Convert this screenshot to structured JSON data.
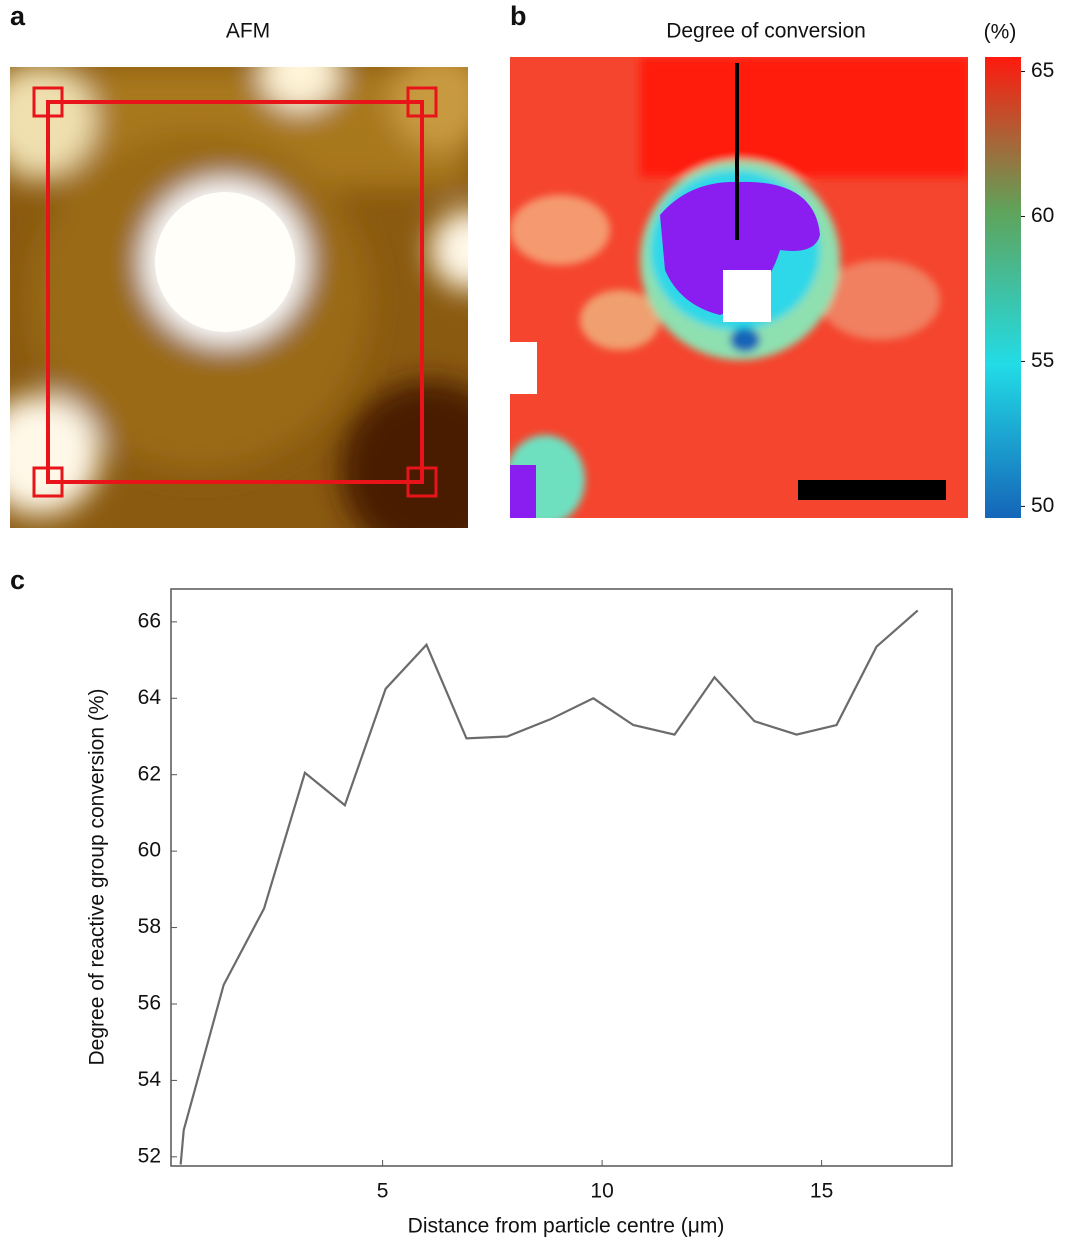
{
  "chart_data": [
    {
      "type": "image",
      "label": "a",
      "title": "AFM"
    },
    {
      "type": "heatmap",
      "label": "b",
      "title": "Degree of conversion",
      "colorbar_label": "(%)",
      "ylim": [
        49.6,
        65.5
      ],
      "yticks": [
        50,
        55,
        60,
        65
      ],
      "colormap": [
        "#1565b8",
        "#22dce6",
        "#5fa35a",
        "#ff1a0e"
      ]
    },
    {
      "type": "line",
      "label": "c",
      "x_label": "Distance from particle centre (μm)",
      "y_label": "Degree of reactive group conversion (%)",
      "xlim": [
        0.18,
        17.97
      ],
      "ylim": [
        51.76,
        66.86
      ],
      "xticks": [
        5,
        10,
        15
      ],
      "yticks": [
        52,
        54,
        56,
        58,
        60,
        62,
        64,
        66
      ],
      "series": [
        {
          "color": "#6b6b6b",
          "x": [
            0.4,
            0.47,
            1.38,
            2.3,
            3.23,
            4.14,
            5.07,
            6.0,
            6.91,
            7.84,
            8.82,
            9.8,
            10.71,
            11.65,
            12.56,
            13.47,
            14.43,
            15.34,
            16.25,
            17.19
          ],
          "values": [
            51.8,
            52.7,
            56.5,
            58.5,
            62.05,
            61.2,
            64.25,
            65.4,
            62.95,
            63.0,
            63.45,
            64.0,
            63.3,
            63.05,
            64.55,
            63.4,
            63.05,
            63.3,
            65.35,
            66.3
          ]
        }
      ]
    }
  ]
}
